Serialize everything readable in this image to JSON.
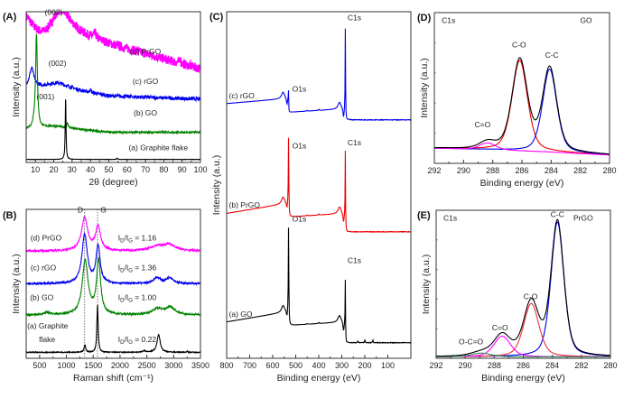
{
  "chart_data": [
    {
      "id": "A",
      "panel_label": "(A)",
      "type": "line",
      "xlabel": "2θ (degree)",
      "ylabel": "Intensity (a.u.)",
      "xlim": [
        5,
        100
      ],
      "xticks": [
        10,
        20,
        30,
        40,
        50,
        60,
        70,
        80,
        90,
        100
      ],
      "yticks_shown": false,
      "series": [
        {
          "name": "(d) PrGO",
          "color": "#ff00ff",
          "offset": 0.8,
          "noise": 0.03,
          "peaks": [
            {
              "x": 5,
              "h": 0.1,
              "w": 4
            },
            {
              "x": 23.5,
              "h": 0.18,
              "w": 6
            },
            {
              "x": 42.5,
              "h": 0.03,
              "w": 1
            },
            {
              "x": 89,
              "h": 0.04,
              "w": 0.3
            }
          ],
          "base": [
            [
              5,
              0.05
            ],
            [
              15,
              0.0
            ],
            [
              30,
              0.05
            ],
            [
              100,
              -0.18
            ]
          ]
        },
        {
          "name": "(c) rGO",
          "color": "#0000ee",
          "offset": 0.48,
          "noise": 0.012,
          "peaks": [
            {
              "x": 8,
              "h": 0.12,
              "w": 1.4
            },
            {
              "x": 22,
              "h": 0.04,
              "w": 7
            },
            {
              "x": 40,
              "h": 0.02,
              "w": 0.4
            }
          ],
          "base": [
            [
              5,
              0.02
            ],
            [
              30,
              0.0
            ],
            [
              50,
              -0.04
            ],
            [
              100,
              -0.06
            ]
          ]
        },
        {
          "name": "(b) GO",
          "color": "#008000",
          "offset": 0.22,
          "noise": 0.006,
          "peaks": [
            {
              "x": 10.6,
              "h": 0.62,
              "w": 0.6
            },
            {
              "x": 9,
              "h": 0.03,
              "w": 0.5
            },
            {
              "x": 20,
              "h": 0.02,
              "w": 7
            },
            {
              "x": 27.5,
              "h": 0.03,
              "w": 0.5
            }
          ],
          "base": [
            [
              5,
              0.0
            ],
            [
              30,
              0.0
            ],
            [
              50,
              -0.02
            ],
            [
              100,
              -0.02
            ]
          ]
        },
        {
          "name": "(a) Graphite flake",
          "color": "#000000",
          "offset": 0.02,
          "noise": 0.001,
          "peaks": [
            {
              "x": 26.5,
              "h": 0.42,
              "w": 0.25
            },
            {
              "x": 54.6,
              "h": 0.01,
              "w": 0.3
            }
          ],
          "base": [
            [
              5,
              0.0
            ],
            [
              100,
              0.0
            ]
          ]
        }
      ],
      "annotations": [
        {
          "text": "(002)",
          "x": 20,
          "y": 0.98
        },
        {
          "text": "(002)",
          "x": 22,
          "y": 0.64
        },
        {
          "text": "(001)",
          "x": 15.5,
          "y": 0.42
        },
        {
          "text": "(d) PrGO",
          "x": 70,
          "y": 0.72
        },
        {
          "text": "(c) rGO",
          "x": 70,
          "y": 0.52
        },
        {
          "text": "(b) GO",
          "x": 70,
          "y": 0.31
        },
        {
          "text": "(a) Graphite flake",
          "x": 77,
          "y": 0.08
        }
      ]
    },
    {
      "id": "B",
      "panel_label": "(B)",
      "type": "line",
      "xlabel": "Raman shift (cm⁻¹)",
      "ylabel": "Intensity (a.u.)",
      "xlim": [
        250,
        3500
      ],
      "xticks": [
        500,
        1000,
        1500,
        2000,
        2500,
        3000,
        3500
      ],
      "yticks_shown": false,
      "reference_lines": [
        {
          "label": "D",
          "x": 1340
        },
        {
          "label": "G",
          "x": 1580
        }
      ],
      "series": [
        {
          "name": "(d) PrGO",
          "color": "#ff00ff",
          "offset": 0.72,
          "noise": 0.006,
          "ratio": "1.16",
          "peaks": [
            {
              "x": 1340,
              "h": 0.22,
              "w": 70
            },
            {
              "x": 1590,
              "h": 0.16,
              "w": 55
            },
            {
              "x": 2690,
              "h": 0.03,
              "w": 150
            },
            {
              "x": 2920,
              "h": 0.04,
              "w": 130
            }
          ]
        },
        {
          "name": "(c) rGO",
          "color": "#0000ee",
          "offset": 0.5,
          "noise": 0.006,
          "ratio": "1.36",
          "peaks": [
            {
              "x": 1340,
              "h": 0.33,
              "w": 60
            },
            {
              "x": 1590,
              "h": 0.25,
              "w": 45
            },
            {
              "x": 2690,
              "h": 0.04,
              "w": 80
            },
            {
              "x": 2930,
              "h": 0.04,
              "w": 80
            }
          ]
        },
        {
          "name": "(b) GO",
          "color": "#008000",
          "offset": 0.29,
          "noise": 0.006,
          "ratio": "1.00",
          "peaks": [
            {
              "x": 1350,
              "h": 0.36,
              "w": 65
            },
            {
              "x": 1600,
              "h": 0.36,
              "w": 45
            },
            {
              "x": 2700,
              "h": 0.04,
              "w": 120
            },
            {
              "x": 2940,
              "h": 0.05,
              "w": 100
            },
            {
              "x": 650,
              "h": 0.015,
              "w": 80
            }
          ]
        },
        {
          "name": "(a) Graphite flake",
          "color": "#000000",
          "offset": 0.04,
          "noise": 0.003,
          "ratio": "0.22",
          "peaks": [
            {
              "x": 1345,
              "h": 0.05,
              "w": 18
            },
            {
              "x": 1580,
              "h": 0.32,
              "w": 14
            },
            {
              "x": 2720,
              "h": 0.12,
              "w": 35
            },
            {
              "x": 2450,
              "h": 0.01,
              "w": 30
            },
            {
              "x": 3250,
              "h": 0.01,
              "w": 10
            }
          ]
        }
      ],
      "annotations": [
        {
          "text": "D",
          "x": 1260,
          "y": 0.98
        },
        {
          "text": "G",
          "x": 1690,
          "y": 0.98
        },
        {
          "text": "(d) PrGO",
          "x": 620,
          "y": 0.79
        },
        {
          "text": "(c) rGO",
          "x": 570,
          "y": 0.59
        },
        {
          "text": "(b) GO",
          "x": 540,
          "y": 0.39
        },
        {
          "text": "(a) Graphite",
          "x": 650,
          "y": 0.2
        },
        {
          "text": "flake",
          "x": 640,
          "y": 0.11
        },
        {
          "text": "I_D/I_G = 1.16",
          "x": 2300,
          "y": 0.79
        },
        {
          "text": "I_D/I_G = 1.36",
          "x": 2300,
          "y": 0.59
        },
        {
          "text": "I_D/I_G = 1.00",
          "x": 2300,
          "y": 0.39
        },
        {
          "text": "I_D/I_G = 0.22",
          "x": 2300,
          "y": 0.11
        }
      ]
    },
    {
      "id": "C",
      "panel_label": "(C)",
      "type": "line",
      "xlabel": "Binding energy (eV)",
      "ylabel": "Intensity (a.u.)",
      "xlim": [
        800,
        0
      ],
      "xticks": [
        800,
        700,
        600,
        500,
        400,
        300,
        200,
        100
      ],
      "yticks_shown": false,
      "series": [
        {
          "name": "(c) rGO",
          "color": "#0000ee",
          "offset": 0.735,
          "o1s": 0.025,
          "c1s": 0.255,
          "after": 0.688,
          "slope": 0.015
        },
        {
          "name": "(b) PrGO",
          "color": "#ee0000",
          "offset": 0.418,
          "o1s": 0.195,
          "c1s": 0.2,
          "after": 0.365,
          "slope": 0.03
        },
        {
          "name": "(a) GO",
          "color": "#000000",
          "offset": 0.105,
          "o1s": 0.25,
          "c1s": 0.135,
          "after": 0.045,
          "slope": 0.03
        }
      ],
      "annotations": [
        {
          "text": "(c) rGO",
          "x": 790,
          "y": 0.75
        },
        {
          "text": "O1s",
          "x": 515,
          "y": 0.77
        },
        {
          "text": "C1s",
          "x": 275,
          "y": 0.975
        },
        {
          "text": "(b) PrGO",
          "x": 790,
          "y": 0.435
        },
        {
          "text": "O1s",
          "x": 515,
          "y": 0.605
        },
        {
          "text": "C1s",
          "x": 275,
          "y": 0.615
        },
        {
          "text": "(a) GO",
          "x": 790,
          "y": 0.12
        },
        {
          "text": "O1s",
          "x": 515,
          "y": 0.395
        },
        {
          "text": "C1s",
          "x": 275,
          "y": 0.275
        }
      ]
    },
    {
      "id": "D",
      "panel_label": "(D)",
      "type": "line",
      "xlabel": "Binding energy (eV)",
      "ylabel": "Intensity (a.u.)",
      "xlim": [
        292,
        280
      ],
      "xticks": [
        292,
        290,
        288,
        286,
        284,
        282,
        280
      ],
      "ylim": [
        0,
        1
      ],
      "yticks_shown": false,
      "corner_labels": {
        "left": "C1s",
        "right": "GO"
      },
      "components": [
        {
          "name": "C-O",
          "color": "#ee0000",
          "center": 286.15,
          "height": 0.6,
          "fwhm": 1.25
        },
        {
          "name": "C-C",
          "color": "#0000ee",
          "center": 284.1,
          "height": 0.55,
          "fwhm": 1.15
        },
        {
          "name": "C=O",
          "color": "#ff00ff",
          "center": 288.35,
          "height": 0.045,
          "fwhm": 1.3
        }
      ],
      "background": [
        [
          292,
          0.1
        ],
        [
          288,
          0.09
        ],
        [
          284,
          0.075
        ],
        [
          280,
          0.055
        ]
      ],
      "envelope_color": "#000000",
      "annotations": [
        {
          "text": "C-O",
          "x": 286.2,
          "y": 0.77
        },
        {
          "text": "C-C",
          "x": 283.95,
          "y": 0.7
        },
        {
          "text": "C=O",
          "x": 288.7,
          "y": 0.24
        },
        {
          "text": "C1s",
          "x": 291.5,
          "y": 0.93
        },
        {
          "text": "GO",
          "x": 281.2,
          "y": 0.93
        }
      ]
    },
    {
      "id": "E",
      "panel_label": "(E)",
      "type": "line",
      "xlabel": "Binding energy (eV)",
      "ylabel": "Intensity (a.u.)",
      "xlim": [
        292,
        280
      ],
      "xticks": [
        292,
        290,
        288,
        286,
        284,
        282,
        280
      ],
      "ylim": [
        0,
        1
      ],
      "yticks_shown": false,
      "corner_labels": {
        "left": "C1s",
        "right": "PrGO"
      },
      "components": [
        {
          "name": "C-C",
          "color": "#0000ee",
          "center": 283.65,
          "height": 0.91,
          "fwhm": 1.05
        },
        {
          "name": "C-O",
          "color": "#ee3333",
          "center": 285.45,
          "height": 0.36,
          "fwhm": 1.25
        },
        {
          "name": "C=O",
          "color": "#ff00ff",
          "center": 287.45,
          "height": 0.14,
          "fwhm": 1.35
        },
        {
          "name": "O-C=O",
          "color": "#2e8b57",
          "center": 288.9,
          "height": 0.025,
          "fwhm": 1.6
        }
      ],
      "background": [
        [
          292,
          0.01
        ],
        [
          280,
          0.01
        ]
      ],
      "envelope_color": "#000000",
      "annotations": [
        {
          "text": "C-C",
          "x": 283.65,
          "y": 0.955
        },
        {
          "text": "C-O",
          "x": 285.5,
          "y": 0.4
        },
        {
          "text": "C=O",
          "x": 287.6,
          "y": 0.19
        },
        {
          "text": "O-C=O",
          "x": 289.6,
          "y": 0.095
        },
        {
          "text": "C1s",
          "x": 291.5,
          "y": 0.93
        },
        {
          "text": "PrGO",
          "x": 281.2,
          "y": 0.93
        }
      ]
    }
  ]
}
